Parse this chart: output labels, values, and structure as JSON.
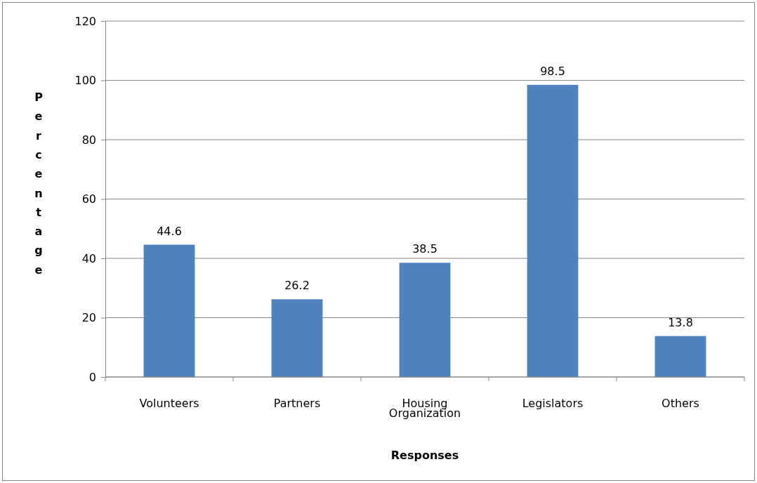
{
  "chart_data": {
    "type": "bar",
    "xlabel": "Responses",
    "ylabel": "Percentage",
    "categories": [
      "Volunteers",
      "Partners",
      "Housing Organization",
      "Legislators",
      "Others"
    ],
    "values": [
      44.6,
      26.2,
      38.5,
      98.5,
      13.8
    ],
    "color": "#4f81bd",
    "ylim": [
      0,
      120
    ],
    "yticks": [
      0,
      20,
      40,
      60,
      80,
      100,
      120
    ],
    "grid": "y",
    "data_labels": true
  }
}
